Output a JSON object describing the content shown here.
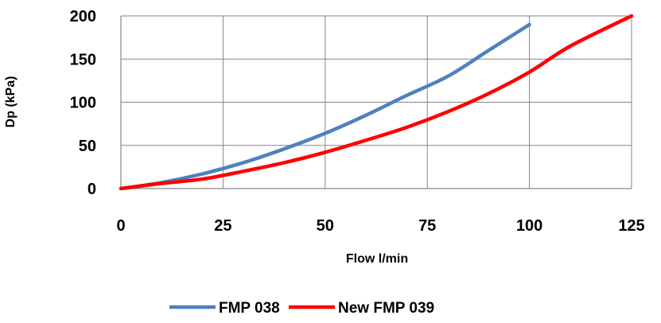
{
  "chart_data": {
    "type": "line",
    "xlabel": "Flow  l/min",
    "ylabel": "Dp  (kPa)",
    "xlim": [
      0,
      125
    ],
    "ylim": [
      0,
      200
    ],
    "x_ticks": [
      "0",
      "25",
      "50",
      "75",
      "100",
      "125"
    ],
    "y_ticks": [
      "0",
      "50",
      "100",
      "150",
      "200"
    ],
    "grid": true,
    "legend_position": "bottom",
    "series": [
      {
        "name": "FMP 038",
        "color": "#4F81BD",
        "x": [
          0,
          10,
          20,
          30,
          40,
          50,
          60,
          70,
          80,
          90,
          100
        ],
        "y": [
          0,
          7,
          17,
          30,
          46,
          64,
          85,
          108,
          130,
          160,
          190
        ]
      },
      {
        "name": "New FMP 039",
        "color": "#FF0000",
        "x": [
          0,
          10,
          20,
          30,
          40,
          50,
          60,
          70,
          80,
          90,
          100,
          110,
          125
        ],
        "y": [
          0,
          6,
          11,
          20,
          30,
          42,
          56,
          71,
          89,
          110,
          135,
          165,
          200
        ]
      }
    ]
  }
}
